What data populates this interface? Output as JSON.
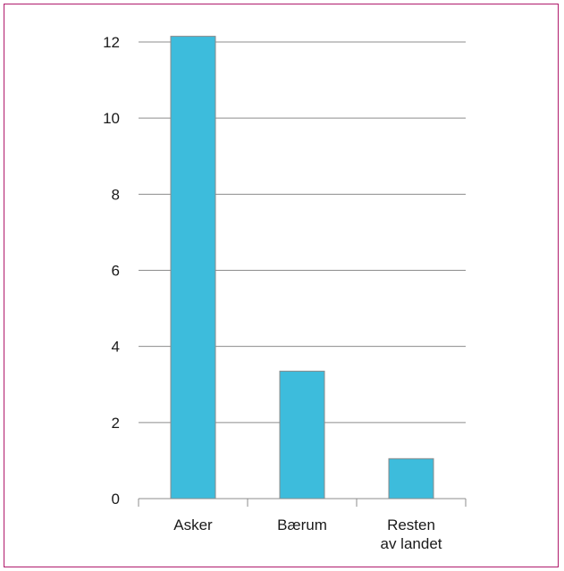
{
  "chart_data": {
    "type": "bar",
    "categories": [
      [
        "Asker"
      ],
      [
        "Bærum"
      ],
      [
        "Resten",
        "av landet"
      ]
    ],
    "values": [
      12.15,
      3.35,
      1.05
    ],
    "yticks": [
      0,
      2,
      4,
      6,
      8,
      10,
      12
    ],
    "ylim": [
      0,
      12
    ],
    "grid": true,
    "colors": {
      "bar": "#3dbcdc",
      "bar_edge": "#8a8a8a",
      "grid": "#8c8c8c",
      "frame": "#b01a6b"
    }
  }
}
